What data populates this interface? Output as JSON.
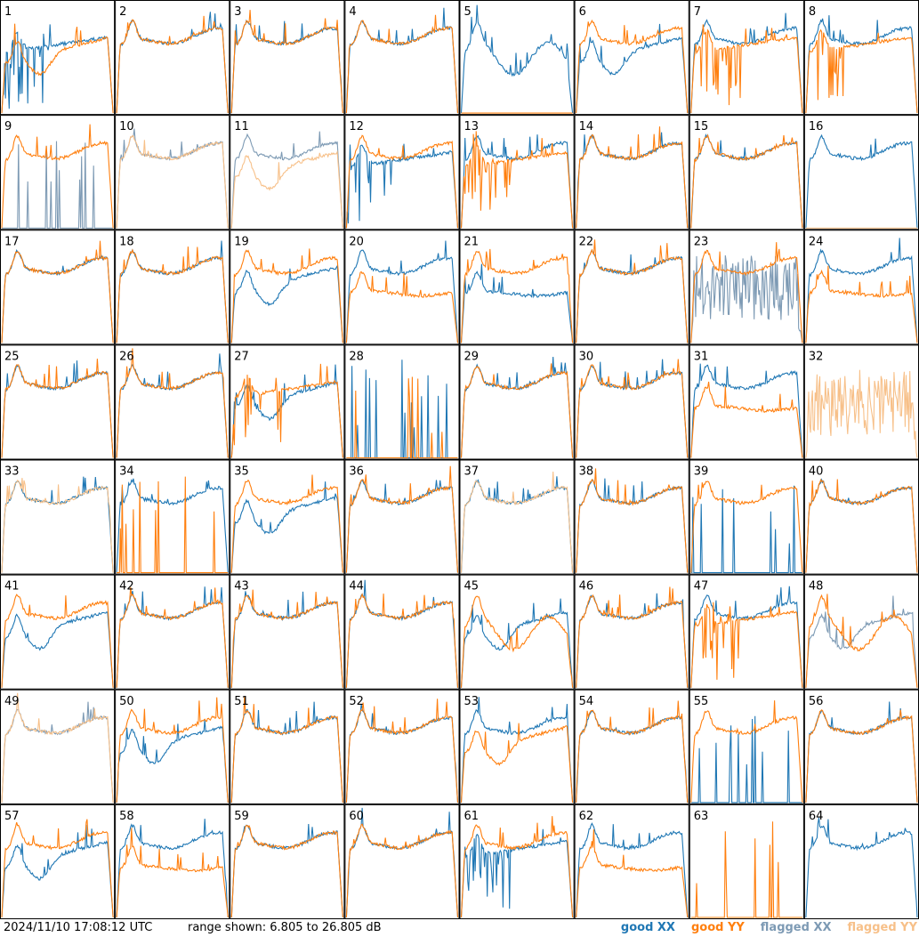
{
  "footer": {
    "timestamp": "2024/11/10 17:08:12 UTC",
    "range_label": "range shown: 6.805 to 26.805 dB"
  },
  "legend": [
    {
      "label": "good XX",
      "color": "#1f77b4"
    },
    {
      "label": "good YY",
      "color": "#ff7f0e"
    },
    {
      "label": "flagged XX",
      "color": "#7d9ab4"
    },
    {
      "label": "flagged YY",
      "color": "#f7c089"
    }
  ],
  "chart_data": {
    "type": "line",
    "description_units": "dB",
    "ylim": [
      6.805,
      26.805
    ],
    "grid": {
      "rows": 8,
      "cols": 8
    },
    "series_names": [
      "good XX",
      "good YY",
      "flagged XX",
      "flagged YY"
    ],
    "panels": [
      {
        "label": "1",
        "xx": "spiky",
        "yy": "dip",
        "xs": 0,
        "ys": 0
      },
      {
        "label": "2",
        "xx": "normal",
        "yy": "normal",
        "xs": 0,
        "ys": 0
      },
      {
        "label": "3",
        "xx": "normal",
        "yy": "normal",
        "xs": 0,
        "ys": 0
      },
      {
        "label": "4",
        "xx": "normal",
        "yy": "normal",
        "xs": 0,
        "ys": 0
      },
      {
        "label": "5",
        "xx": "wavy",
        "yy": "flat",
        "xs": 0,
        "ys": 0
      },
      {
        "label": "6",
        "xx": "dip",
        "yy": "normal",
        "xs": 0,
        "ys": 0
      },
      {
        "label": "7",
        "xx": "normal",
        "yy": "spiky",
        "xs": 0,
        "ys": 0
      },
      {
        "label": "8",
        "xx": "normal",
        "yy": "spiky",
        "xs": 0,
        "ys": 0
      },
      {
        "label": "9",
        "xx": "dead",
        "yy": "normal",
        "xs": 1,
        "ys": 0
      },
      {
        "label": "10",
        "xx": "normal",
        "yy": "normal",
        "xs": 1,
        "ys": 1
      },
      {
        "label": "11",
        "xx": "normal",
        "yy": "dip",
        "xs": 1,
        "ys": 1
      },
      {
        "label": "12",
        "xx": "spiky",
        "yy": "normal",
        "xs": 0,
        "ys": 0
      },
      {
        "label": "13",
        "xx": "normal",
        "yy": "spiky",
        "xs": 0,
        "ys": 0
      },
      {
        "label": "14",
        "xx": "normal",
        "yy": "normal",
        "xs": 0,
        "ys": 0
      },
      {
        "label": "15",
        "xx": "normal",
        "yy": "normal",
        "xs": 0,
        "ys": 0
      },
      {
        "label": "16",
        "xx": "normal",
        "yy": "flat",
        "xs": 0,
        "ys": 1
      },
      {
        "label": "17",
        "xx": "normal",
        "yy": "normal",
        "xs": 0,
        "ys": 0
      },
      {
        "label": "18",
        "xx": "normal",
        "yy": "normal",
        "xs": 0,
        "ys": 0
      },
      {
        "label": "19",
        "xx": "dip",
        "yy": "normal",
        "xs": 0,
        "ys": 0
      },
      {
        "label": "20",
        "xx": "normal",
        "yy": "low",
        "xs": 0,
        "ys": 0
      },
      {
        "label": "21",
        "xx": "low",
        "yy": "normal",
        "xs": 0,
        "ys": 0
      },
      {
        "label": "22",
        "xx": "normal",
        "yy": "normal",
        "xs": 0,
        "ys": 0
      },
      {
        "label": "23",
        "xx": "noise",
        "yy": "normal",
        "xs": 1,
        "ys": 0
      },
      {
        "label": "24",
        "xx": "normal",
        "yy": "low",
        "xs": 0,
        "ys": 0
      },
      {
        "label": "25",
        "xx": "normal",
        "yy": "normal",
        "xs": 0,
        "ys": 0
      },
      {
        "label": "26",
        "xx": "normal",
        "yy": "normal",
        "xs": 0,
        "ys": 0
      },
      {
        "label": "27",
        "xx": "dip",
        "yy": "spiky",
        "xs": 0,
        "ys": 0
      },
      {
        "label": "28",
        "xx": "dead",
        "yy": "dead",
        "xs": 0,
        "ys": 0
      },
      {
        "label": "29",
        "xx": "normal",
        "yy": "normal",
        "xs": 0,
        "ys": 0
      },
      {
        "label": "30",
        "xx": "normal",
        "yy": "normal",
        "xs": 0,
        "ys": 0
      },
      {
        "label": "31",
        "xx": "normal",
        "yy": "low",
        "xs": 0,
        "ys": 0
      },
      {
        "label": "32",
        "xx": "none",
        "yy": "noise",
        "xs": 0,
        "ys": 1
      },
      {
        "label": "33",
        "xx": "normal",
        "yy": "normal",
        "xs": 0,
        "ys": 1
      },
      {
        "label": "34",
        "xx": "normal",
        "yy": "dead",
        "xs": 0,
        "ys": 0
      },
      {
        "label": "35",
        "xx": "dip",
        "yy": "normal",
        "xs": 0,
        "ys": 0
      },
      {
        "label": "36",
        "xx": "normal",
        "yy": "normal",
        "xs": 0,
        "ys": 0
      },
      {
        "label": "37",
        "xx": "normal",
        "yy": "normal",
        "xs": 0,
        "ys": 1
      },
      {
        "label": "38",
        "xx": "normal",
        "yy": "normal",
        "xs": 0,
        "ys": 0
      },
      {
        "label": "39",
        "xx": "dead",
        "yy": "normal",
        "xs": 0,
        "ys": 0
      },
      {
        "label": "40",
        "xx": "normal",
        "yy": "normal",
        "xs": 0,
        "ys": 0
      },
      {
        "label": "41",
        "xx": "dip",
        "yy": "normal",
        "xs": 0,
        "ys": 0
      },
      {
        "label": "42",
        "xx": "normal",
        "yy": "normal",
        "xs": 0,
        "ys": 0
      },
      {
        "label": "43",
        "xx": "normal",
        "yy": "normal",
        "xs": 0,
        "ys": 0
      },
      {
        "label": "44",
        "xx": "normal",
        "yy": "normal",
        "xs": 0,
        "ys": 0
      },
      {
        "label": "45",
        "xx": "dip",
        "yy": "wavy",
        "xs": 0,
        "ys": 0
      },
      {
        "label": "46",
        "xx": "normal",
        "yy": "normal",
        "xs": 0,
        "ys": 0
      },
      {
        "label": "47",
        "xx": "normal",
        "yy": "spiky",
        "xs": 0,
        "ys": 0
      },
      {
        "label": "48",
        "xx": "dip",
        "yy": "wavy",
        "xs": 1,
        "ys": 0
      },
      {
        "label": "49",
        "xx": "normal",
        "yy": "normal",
        "xs": 1,
        "ys": 1
      },
      {
        "label": "50",
        "xx": "dip",
        "yy": "normal",
        "xs": 0,
        "ys": 0
      },
      {
        "label": "51",
        "xx": "normal",
        "yy": "normal",
        "xs": 0,
        "ys": 0
      },
      {
        "label": "52",
        "xx": "normal",
        "yy": "normal",
        "xs": 0,
        "ys": 0
      },
      {
        "label": "53",
        "xx": "normal",
        "yy": "dip",
        "xs": 0,
        "ys": 0
      },
      {
        "label": "54",
        "xx": "normal",
        "yy": "normal",
        "xs": 0,
        "ys": 0
      },
      {
        "label": "55",
        "xx": "dead",
        "yy": "normal",
        "xs": 0,
        "ys": 0
      },
      {
        "label": "56",
        "xx": "normal",
        "yy": "normal",
        "xs": 0,
        "ys": 0
      },
      {
        "label": "57",
        "xx": "dip",
        "yy": "normal",
        "xs": 0,
        "ys": 0
      },
      {
        "label": "58",
        "xx": "normal",
        "yy": "low",
        "xs": 0,
        "ys": 0
      },
      {
        "label": "59",
        "xx": "normal",
        "yy": "normal",
        "xs": 0,
        "ys": 0
      },
      {
        "label": "60",
        "xx": "normal",
        "yy": "normal",
        "xs": 0,
        "ys": 0
      },
      {
        "label": "61",
        "xx": "spiky",
        "yy": "normal",
        "xs": 0,
        "ys": 0
      },
      {
        "label": "62",
        "xx": "normal",
        "yy": "low",
        "xs": 0,
        "ys": 0
      },
      {
        "label": "63",
        "xx": "none",
        "yy": "dead",
        "xs": 0,
        "ys": 0
      },
      {
        "label": "64",
        "xx": "normal",
        "yy": "none",
        "xs": 0,
        "ys": 0
      }
    ]
  }
}
